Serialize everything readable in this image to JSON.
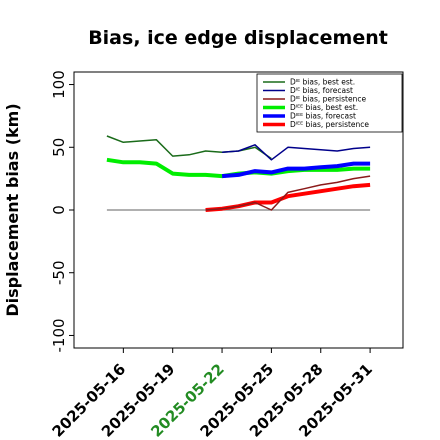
{
  "chart_data": {
    "type": "line",
    "title": "Bias, ice edge displacement",
    "xlabel": "",
    "ylabel": "Displacement bias (km)",
    "ylim": [
      -110,
      110
    ],
    "yticks": [
      -100,
      -50,
      0,
      50,
      100
    ],
    "xlim": [
      "2025-05-13",
      "2025-06-02"
    ],
    "xticks": [
      "2025-05-16",
      "2025-05-19",
      "2025-05-22",
      "2025-05-25",
      "2025-05-28",
      "2025-05-31"
    ],
    "highlighted_xtick": "2025-05-22",
    "highlight_color": "#228b22",
    "grid": false,
    "legend_placement": "top-right",
    "reference_line": {
      "y": 0,
      "color": "#808080"
    },
    "series": [
      {
        "name": "Dᴵᴱ bias, best est.",
        "color": "#1a6b1a",
        "width": 1.5,
        "x": [
          "2025-05-15",
          "2025-05-16",
          "2025-05-17",
          "2025-05-18",
          "2025-05-19",
          "2025-05-20",
          "2025-05-21",
          "2025-05-22",
          "2025-05-23",
          "2025-05-24",
          "2025-05-25"
        ],
        "values": [
          59,
          54,
          55,
          56,
          43,
          44,
          47,
          46,
          47,
          50,
          41
        ]
      },
      {
        "name": "Dᴵᴱ bias, forecast",
        "color": "#00008b",
        "width": 1.5,
        "x": [
          "2025-05-22",
          "2025-05-23",
          "2025-05-24",
          "2025-05-25",
          "2025-05-26",
          "2025-05-27",
          "2025-05-28",
          "2025-05-29",
          "2025-05-30",
          "2025-05-31"
        ],
        "values": [
          46,
          47,
          52,
          40,
          50,
          49,
          48,
          47,
          49,
          50
        ]
      },
      {
        "name": "Dᴵᴱ bias, persistence",
        "color": "#8b1a1a",
        "width": 1.5,
        "x": [
          "2025-05-21",
          "2025-05-22",
          "2025-05-23",
          "2025-05-24",
          "2025-05-25",
          "2025-05-26",
          "2025-05-27",
          "2025-05-28",
          "2025-05-29",
          "2025-05-30",
          "2025-05-31"
        ],
        "values": [
          0,
          1,
          3,
          6,
          0,
          14,
          17,
          20,
          22,
          25,
          27
        ]
      },
      {
        "name": "Dᴵᴱᴱ bias, best est.",
        "color": "#00ee00",
        "width": 4,
        "x": [
          "2025-05-15",
          "2025-05-16",
          "2025-05-17",
          "2025-05-18",
          "2025-05-19",
          "2025-05-20",
          "2025-05-21",
          "2025-05-22",
          "2025-05-23",
          "2025-05-24",
          "2025-05-25",
          "2025-05-26",
          "2025-05-27",
          "2025-05-28",
          "2025-05-29",
          "2025-05-30",
          "2025-05-31"
        ],
        "values": [
          40,
          38,
          38,
          37,
          29,
          28,
          28,
          27,
          29,
          30,
          29,
          31,
          32,
          32,
          32,
          33,
          33
        ]
      },
      {
        "name": "Dᴵᴱᴱ bias, forecast",
        "color": "#0000ff",
        "width": 4,
        "x": [
          "2025-05-22",
          "2025-05-23",
          "2025-05-24",
          "2025-05-25",
          "2025-05-26",
          "2025-05-27",
          "2025-05-28",
          "2025-05-29",
          "2025-05-30",
          "2025-05-31"
        ],
        "values": [
          27,
          28,
          31,
          30,
          33,
          33,
          34,
          35,
          37,
          37
        ]
      },
      {
        "name": "Dᴵᴱᴱ bias, persistence",
        "color": "#ff0000",
        "width": 4,
        "x": [
          "2025-05-21",
          "2025-05-22",
          "2025-05-23",
          "2025-05-24",
          "2025-05-25",
          "2025-05-26",
          "2025-05-27",
          "2025-05-28",
          "2025-05-29",
          "2025-05-30",
          "2025-05-31"
        ],
        "values": [
          0,
          1,
          3,
          6,
          6,
          11,
          13,
          15,
          17,
          19,
          20
        ]
      }
    ]
  }
}
